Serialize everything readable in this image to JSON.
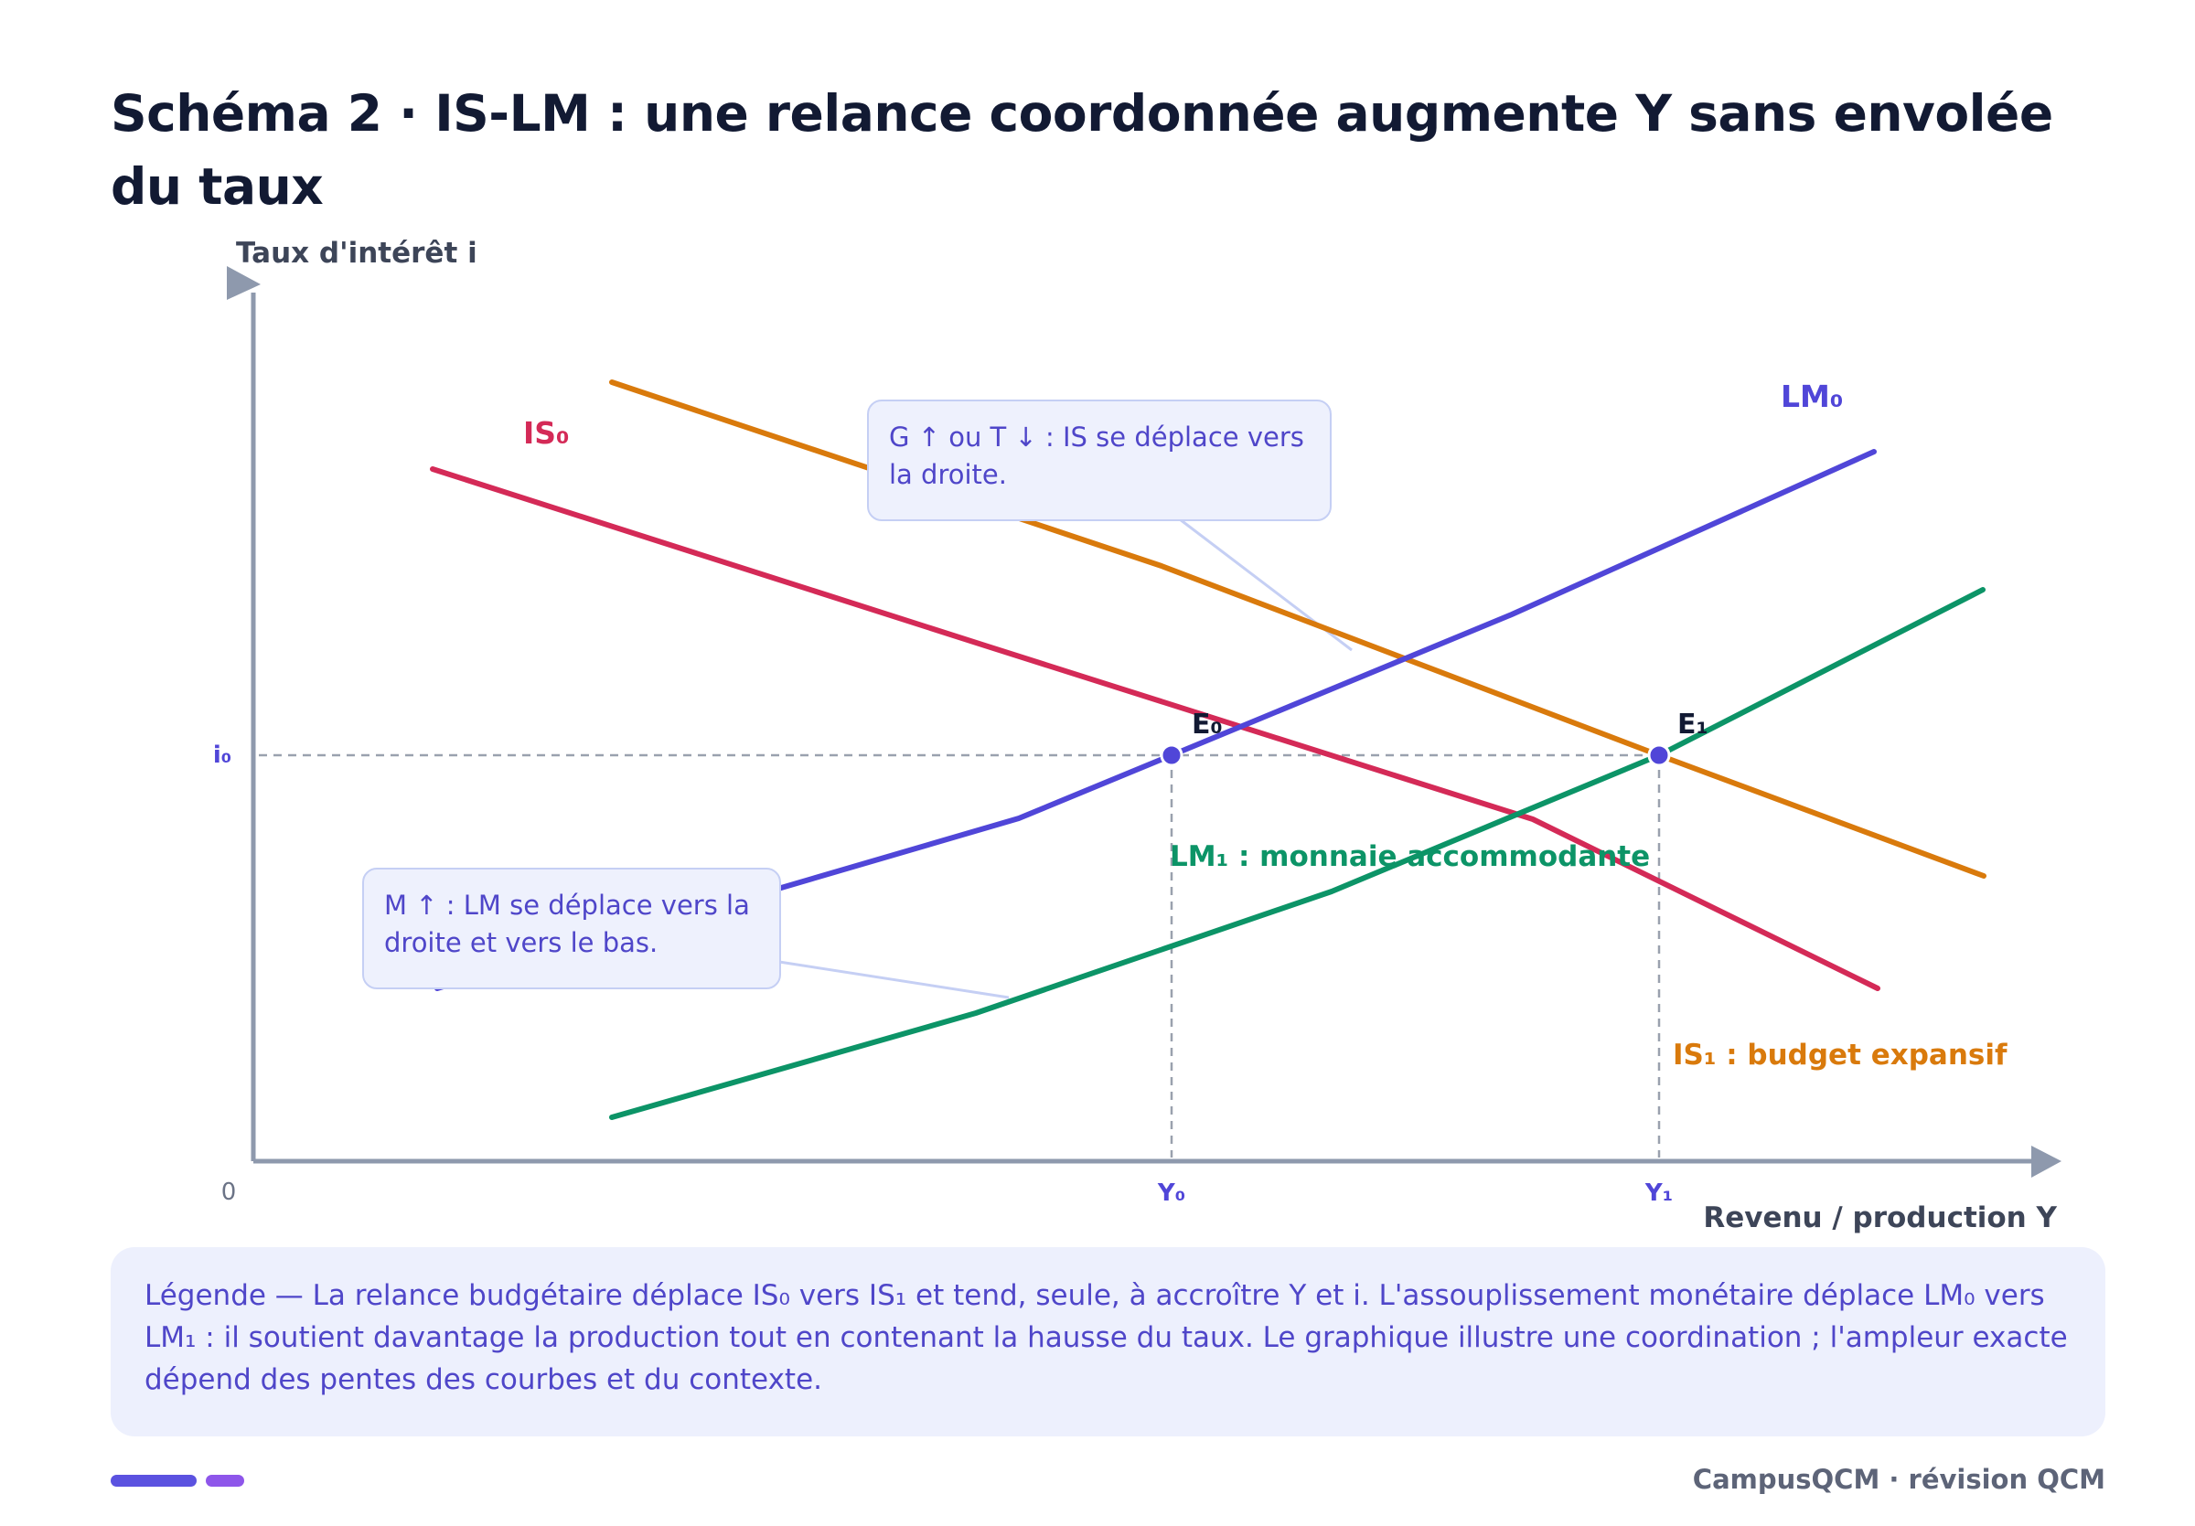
{
  "title": "Schéma 2 · IS-LM : une relance coordonnée augmente Y sans envolée du taux",
  "axes": {
    "y_label": "Taux d'intérêt i",
    "x_label": "Revenu / production Y",
    "origin_label": "0"
  },
  "curves": {
    "IS0": {
      "label": "IS₀",
      "color": "#d42a57"
    },
    "IS1": {
      "label": "IS₁ : budget expansif",
      "color": "#d97a0c"
    },
    "LM0": {
      "label": "LM₀",
      "color": "#5046d8"
    },
    "LM1": {
      "label": "LM₁ : monnaie accommodante",
      "color": "#0c9467"
    }
  },
  "equilibria": [
    {
      "label": "E₀",
      "y_label": "Y₀",
      "i_label": "i₀"
    },
    {
      "label": "E₁",
      "y_label": "Y₁"
    }
  ],
  "callouts": {
    "fiscal": "G ↑ ou T ↓ : IS se déplace vers la droite.",
    "monetary": "M ↑ : LM se déplace vers la droite et vers le bas."
  },
  "legend": "Légende — La relance budgétaire déplace IS₀ vers IS₁ et tend, seule, à accroître Y et i. L'assouplissement monétaire déplace LM₀ vers LM₁ : il soutient davantage la production tout en contenant la hausse du taux. Le graphique illustre une coordination ; l'ampleur exacte dépend des pentes des courbes et du contexte.",
  "footer": "CampusQCM · révision QCM",
  "colors": {
    "axis": "#8e99ad",
    "point": "#5046d8",
    "guide": "#9aa1ae",
    "title": "#121a33"
  }
}
